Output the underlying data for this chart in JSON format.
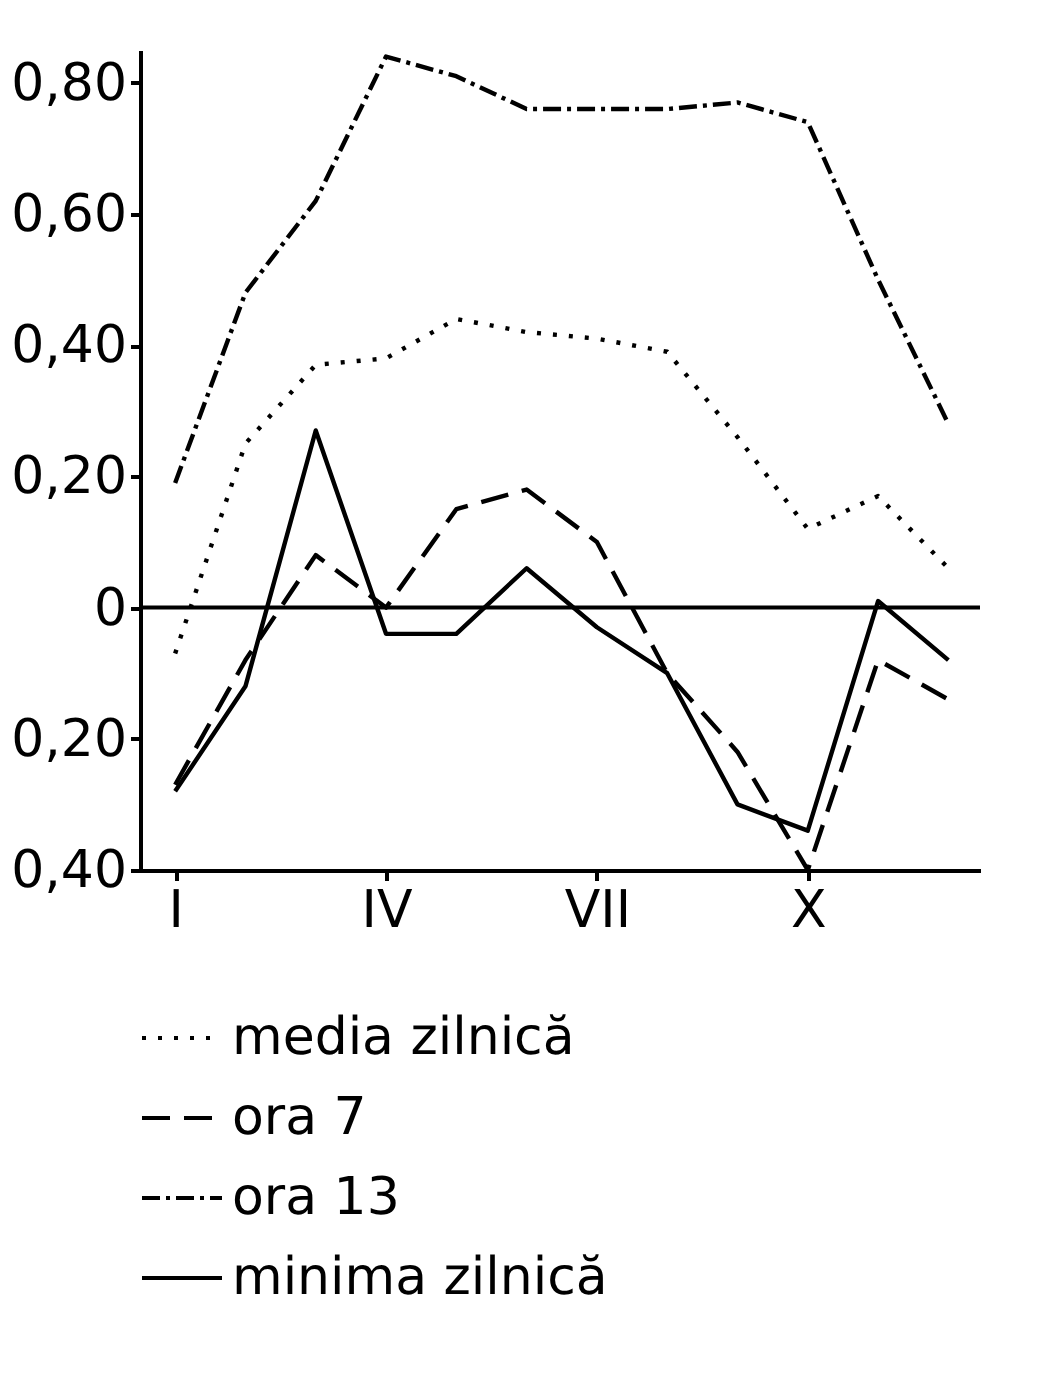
{
  "chart_data": {
    "type": "line",
    "categories": [
      "I",
      null,
      null,
      "IV",
      null,
      null,
      "VII",
      null,
      null,
      "X",
      null,
      null
    ],
    "series": [
      {
        "name": "media zilnică",
        "color": "#000000",
        "line_style": "dotted",
        "values": [
          -0.07,
          0.25,
          0.37,
          0.38,
          0.44,
          0.42,
          0.41,
          0.39,
          0.26,
          0.12,
          0.17,
          0.06
        ]
      },
      {
        "name": "ora 7",
        "color": "#000000",
        "line_style": "dashed",
        "values": [
          -0.27,
          -0.08,
          0.08,
          0.0,
          0.15,
          0.18,
          0.1,
          -0.1,
          -0.22,
          -0.4,
          -0.08,
          -0.14
        ]
      },
      {
        "name": "ora 13",
        "color": "#000000",
        "line_style": "dashdot",
        "values": [
          0.19,
          0.48,
          0.62,
          0.84,
          0.81,
          0.76,
          0.76,
          0.76,
          0.77,
          0.74,
          0.5,
          0.28
        ]
      },
      {
        "name": "minima zilnică",
        "color": "#000000",
        "line_style": "solid",
        "values": [
          -0.28,
          -0.12,
          0.27,
          -0.04,
          -0.04,
          0.06,
          -0.03,
          -0.1,
          -0.3,
          -0.34,
          0.01,
          -0.08
        ]
      }
    ],
    "ylim": [
      -0.4,
      0.85
    ],
    "yticks": [
      {
        "value": -0.4,
        "label": "0,40"
      },
      {
        "value": -0.2,
        "label": "0,20"
      },
      0,
      {
        "value": 0.2,
        "label": "0,20"
      },
      {
        "value": 0.4,
        "label": "0,40"
      },
      {
        "value": 0.6,
        "label": "0,60"
      },
      {
        "value": 0.8,
        "label": "0,80"
      }
    ],
    "ref_lines": [
      {
        "axis": "y",
        "value": 0,
        "color": "#000000"
      }
    ],
    "grid": false,
    "legend": "bottom",
    "marker": "none"
  }
}
